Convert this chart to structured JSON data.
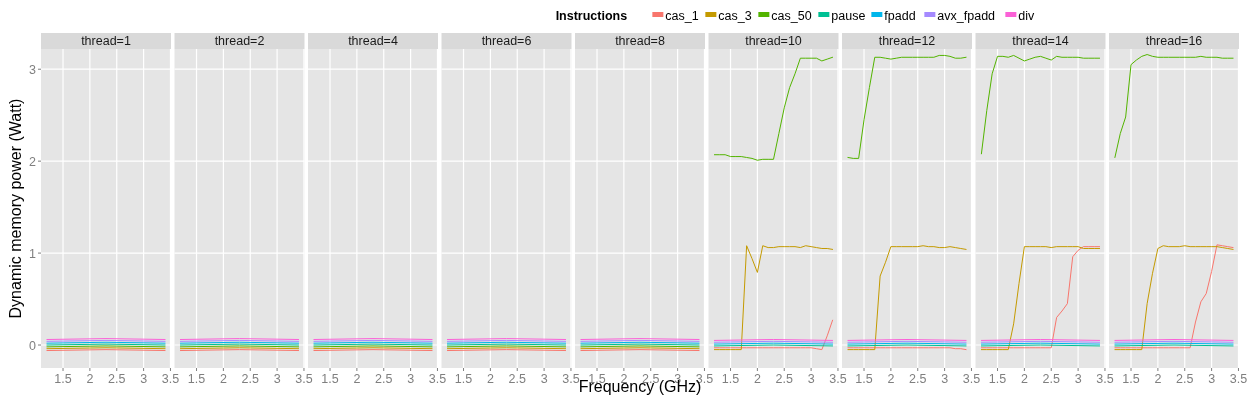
{
  "chart_data": [
    {
      "type": "line",
      "title": "thread=1",
      "ylabel": "Dynamic memory power (Watt)",
      "legend": "top",
      "legend_title": "Instructions",
      "xlim": [
        1.09,
        3.51
      ],
      "ylim": [
        -0.25,
        3.22
      ],
      "xticks": [
        1.5,
        2.0,
        2.5,
        3.0,
        3.5
      ],
      "yticks": [
        0,
        1,
        2,
        3
      ],
      "grid": true,
      "series": [
        {
          "name": "cas_1",
          "color": "#f8766d",
          "x": [
            1.2,
            2.3,
            3.4
          ],
          "values": [
            -0.06,
            -0.05,
            -0.06
          ]
        },
        {
          "name": "cas_3",
          "color": "#c49a00",
          "x": [
            1.2,
            2.3,
            3.4
          ],
          "values": [
            -0.04,
            -0.03,
            -0.04
          ]
        },
        {
          "name": "cas_50",
          "color": "#53b400",
          "x": [
            1.2,
            2.3,
            3.4
          ],
          "values": [
            -0.02,
            -0.01,
            -0.02
          ]
        },
        {
          "name": "pause",
          "color": "#00c094",
          "x": [
            1.2,
            2.3,
            3.4
          ],
          "values": [
            0,
            0.01,
            0
          ]
        },
        {
          "name": "fpadd",
          "color": "#00b6eb",
          "x": [
            1.2,
            2.3,
            3.4
          ],
          "values": [
            0.02,
            0.03,
            0.02
          ]
        },
        {
          "name": "avx_fpadd",
          "color": "#a58aff",
          "x": [
            1.2,
            2.3,
            3.4
          ],
          "values": [
            0.04,
            0.05,
            0.04
          ]
        },
        {
          "name": "div",
          "color": "#fb61d7",
          "x": [
            1.2,
            2.3,
            3.4
          ],
          "values": [
            0.06,
            0.07,
            0.06
          ]
        }
      ]
    },
    {
      "type": "line",
      "title": "thread=2",
      "xlim": [
        1.09,
        3.51
      ],
      "ylim": [
        -0.25,
        3.22
      ],
      "xticks": [
        1.5,
        2.0,
        2.5,
        3.0,
        3.5
      ],
      "yticks": [
        0,
        1,
        2,
        3
      ],
      "grid": true,
      "tick_labels": "x",
      "series": [
        {
          "color": "#f8766d",
          "x": [
            1.2,
            2.3,
            3.4
          ],
          "values": [
            -0.06,
            -0.05,
            -0.06
          ]
        },
        {
          "color": "#c49a00",
          "x": [
            1.2,
            2.3,
            3.4
          ],
          "values": [
            -0.04,
            -0.03,
            -0.04
          ]
        },
        {
          "color": "#53b400",
          "x": [
            1.2,
            2.3,
            3.4
          ],
          "values": [
            -0.02,
            -0.01,
            -0.02
          ]
        },
        {
          "color": "#00c094",
          "x": [
            1.2,
            2.3,
            3.4
          ],
          "values": [
            0,
            0.01,
            0
          ]
        },
        {
          "color": "#00b6eb",
          "x": [
            1.2,
            2.3,
            3.4
          ],
          "values": [
            0.02,
            0.03,
            0.02
          ]
        },
        {
          "color": "#a58aff",
          "x": [
            1.2,
            2.3,
            3.4
          ],
          "values": [
            0.04,
            0.05,
            0.04
          ]
        },
        {
          "color": "#fb61d7",
          "x": [
            1.2,
            2.3,
            3.4
          ],
          "values": [
            0.06,
            0.07,
            0.06
          ]
        }
      ]
    },
    {
      "type": "line",
      "title": "thread=4",
      "xlim": [
        1.09,
        3.51
      ],
      "ylim": [
        -0.25,
        3.22
      ],
      "xticks": [
        1.5,
        2.0,
        2.5,
        3.0,
        3.5
      ],
      "yticks": [
        0,
        1,
        2,
        3
      ],
      "grid": true,
      "tick_labels": "x",
      "series": [
        {
          "color": "#f8766d",
          "x": [
            1.2,
            2.3,
            3.4
          ],
          "values": [
            -0.06,
            -0.05,
            -0.06
          ]
        },
        {
          "color": "#c49a00",
          "x": [
            1.2,
            2.3,
            3.4
          ],
          "values": [
            -0.04,
            -0.03,
            -0.04
          ]
        },
        {
          "color": "#53b400",
          "x": [
            1.2,
            2.3,
            3.4
          ],
          "values": [
            -0.02,
            -0.01,
            -0.02
          ]
        },
        {
          "color": "#00c094",
          "x": [
            1.2,
            2.3,
            3.4
          ],
          "values": [
            0,
            0.01,
            0
          ]
        },
        {
          "color": "#00b6eb",
          "x": [
            1.2,
            2.3,
            3.4
          ],
          "values": [
            0.02,
            0.03,
            0.02
          ]
        },
        {
          "color": "#a58aff",
          "x": [
            1.2,
            2.3,
            3.4
          ],
          "values": [
            0.04,
            0.05,
            0.04
          ]
        },
        {
          "color": "#fb61d7",
          "x": [
            1.2,
            2.3,
            3.4
          ],
          "values": [
            0.06,
            0.07,
            0.06
          ]
        }
      ]
    },
    {
      "type": "line",
      "title": "thread=6",
      "xlim": [
        1.09,
        3.51
      ],
      "ylim": [
        -0.25,
        3.22
      ],
      "xticks": [
        1.5,
        2.0,
        2.5,
        3.0,
        3.5
      ],
      "yticks": [
        0,
        1,
        2,
        3
      ],
      "grid": true,
      "tick_labels": "x",
      "series": [
        {
          "color": "#f8766d",
          "x": [
            1.2,
            2.3,
            3.4
          ],
          "values": [
            -0.06,
            -0.05,
            -0.06
          ]
        },
        {
          "color": "#c49a00",
          "x": [
            1.2,
            2.3,
            3.4
          ],
          "values": [
            -0.04,
            -0.03,
            -0.04
          ]
        },
        {
          "color": "#53b400",
          "x": [
            1.2,
            2.3,
            3.4
          ],
          "values": [
            -0.02,
            -0.01,
            -0.02
          ]
        },
        {
          "color": "#00c094",
          "x": [
            1.2,
            2.3,
            3.4
          ],
          "values": [
            0,
            0.01,
            0
          ]
        },
        {
          "color": "#00b6eb",
          "x": [
            1.2,
            2.3,
            3.4
          ],
          "values": [
            0.02,
            0.03,
            0.02
          ]
        },
        {
          "color": "#a58aff",
          "x": [
            1.2,
            2.3,
            3.4
          ],
          "values": [
            0.04,
            0.05,
            0.04
          ]
        },
        {
          "color": "#fb61d7",
          "x": [
            1.2,
            2.3,
            3.4
          ],
          "values": [
            0.06,
            0.07,
            0.06
          ]
        }
      ]
    },
    {
      "type": "line",
      "title": "thread=8",
      "xlabel": "Frequency (GHz)",
      "xlim": [
        1.09,
        3.51
      ],
      "ylim": [
        -0.25,
        3.22
      ],
      "xticks": [
        1.5,
        2.0,
        2.5,
        3.0,
        3.5
      ],
      "yticks": [
        0,
        1,
        2,
        3
      ],
      "grid": true,
      "tick_labels": "x",
      "series": [
        {
          "color": "#f8766d",
          "x": [
            1.2,
            2.3,
            3.4
          ],
          "values": [
            -0.06,
            -0.05,
            -0.06
          ]
        },
        {
          "color": "#c49a00",
          "x": [
            1.2,
            2.3,
            3.4
          ],
          "values": [
            -0.04,
            -0.03,
            -0.04
          ]
        },
        {
          "color": "#53b400",
          "x": [
            1.2,
            2.3,
            3.4
          ],
          "values": [
            -0.02,
            -0.01,
            -0.02
          ]
        },
        {
          "color": "#00c094",
          "x": [
            1.2,
            2.3,
            3.4
          ],
          "values": [
            0,
            0.01,
            0
          ]
        },
        {
          "color": "#00b6eb",
          "x": [
            1.2,
            2.3,
            3.4
          ],
          "values": [
            0.02,
            0.03,
            0.02
          ]
        },
        {
          "color": "#a58aff",
          "x": [
            1.2,
            2.3,
            3.4
          ],
          "values": [
            0.04,
            0.05,
            0.04
          ]
        },
        {
          "color": "#fb61d7",
          "x": [
            1.2,
            2.3,
            3.4
          ],
          "values": [
            0.06,
            0.07,
            0.06
          ]
        }
      ]
    },
    {
      "type": "line",
      "title": "thread=10",
      "xlim": [
        1.09,
        3.51
      ],
      "ylim": [
        -0.25,
        3.22
      ],
      "xticks": [
        1.5,
        2.0,
        2.5,
        3.0,
        3.5
      ],
      "yticks": [
        0,
        1,
        2,
        3
      ],
      "grid": true,
      "tick_labels": "x",
      "x": [
        1.2,
        1.3,
        1.4,
        1.5,
        1.6,
        1.7,
        1.8,
        1.9,
        2.0,
        2.1,
        2.2,
        2.3,
        2.4,
        2.5,
        2.6,
        2.7,
        2.8,
        2.9,
        3.0,
        3.1,
        3.2,
        3.3,
        3.4
      ],
      "series": [
        {
          "color": "#f8766d",
          "values": [
            -0.03,
            -0.03,
            -0.03,
            -0.03,
            -0.03,
            -0.03,
            -0.03,
            -0.03,
            -0.03,
            -0.03,
            -0.03,
            -0.03,
            -0.03,
            -0.03,
            -0.03,
            -0.03,
            -0.03,
            -0.03,
            -0.03,
            -0.04,
            -0.05,
            0.1,
            0.27
          ]
        },
        {
          "color": "#c49a00",
          "values": [
            -0.05,
            -0.05,
            -0.05,
            -0.05,
            -0.05,
            -0.05,
            1.08,
            0.94,
            0.79,
            1.08,
            1.06,
            1.06,
            1.07,
            1.07,
            1.07,
            1.07,
            1.06,
            1.08,
            1.07,
            1.06,
            1.05,
            1.05,
            1.04
          ]
        },
        {
          "color": "#53b400",
          "values": [
            2.07,
            2.07,
            2.07,
            2.05,
            2.05,
            2.05,
            2.04,
            2.03,
            2.01,
            2.02,
            2.02,
            2.02,
            2.3,
            2.58,
            2.8,
            2.95,
            3.12,
            3.12,
            3.12,
            3.12,
            3.09,
            3.11,
            3.13
          ]
        },
        {
          "color": "#00c094",
          "x": [
            1.2,
            2.3,
            3.4
          ],
          "values": [
            -0.01,
            0,
            -0.01
          ]
        },
        {
          "color": "#00b6eb",
          "x": [
            1.2,
            2.3,
            3.4
          ],
          "values": [
            0.01,
            0.02,
            0.01
          ]
        },
        {
          "color": "#a58aff",
          "x": [
            1.2,
            2.3,
            3.4
          ],
          "values": [
            0.03,
            0.04,
            0.03
          ]
        },
        {
          "color": "#fb61d7",
          "x": [
            1.2,
            2.3,
            3.4
          ],
          "values": [
            0.05,
            0.06,
            0.05
          ]
        }
      ]
    },
    {
      "type": "line",
      "title": "thread=12",
      "xlim": [
        1.09,
        3.51
      ],
      "ylim": [
        -0.25,
        3.22
      ],
      "xticks": [
        1.5,
        2.0,
        2.5,
        3.0,
        3.5
      ],
      "yticks": [
        0,
        1,
        2,
        3
      ],
      "grid": true,
      "tick_labels": "x",
      "x": [
        1.2,
        1.3,
        1.4,
        1.5,
        1.6,
        1.7,
        1.8,
        1.9,
        2.0,
        2.1,
        2.2,
        2.3,
        2.4,
        2.5,
        2.6,
        2.7,
        2.8,
        2.9,
        3.0,
        3.1,
        3.2,
        3.3,
        3.4
      ],
      "series": [
        {
          "color": "#f8766d",
          "values": [
            -0.03,
            -0.03,
            -0.03,
            -0.03,
            -0.03,
            -0.03,
            -0.03,
            -0.03,
            -0.03,
            -0.03,
            -0.03,
            -0.03,
            -0.03,
            -0.03,
            -0.03,
            -0.03,
            -0.03,
            -0.03,
            -0.03,
            -0.03,
            -0.04,
            -0.04,
            -0.05
          ]
        },
        {
          "color": "#c49a00",
          "values": [
            -0.05,
            -0.05,
            -0.05,
            -0.05,
            -0.05,
            -0.05,
            0.75,
            0.9,
            1.07,
            1.07,
            1.07,
            1.07,
            1.07,
            1.07,
            1.08,
            1.07,
            1.07,
            1.06,
            1.06,
            1.07,
            1.06,
            1.05,
            1.04
          ]
        },
        {
          "color": "#53b400",
          "values": [
            2.04,
            2.03,
            2.03,
            2.45,
            2.8,
            3.13,
            3.13,
            3.12,
            3.11,
            3.12,
            3.13,
            3.13,
            3.13,
            3.13,
            3.13,
            3.13,
            3.13,
            3.15,
            3.15,
            3.14,
            3.12,
            3.12,
            3.13
          ]
        },
        {
          "color": "#00c094",
          "x": [
            1.2,
            2.3,
            3.4
          ],
          "values": [
            -0.01,
            0,
            -0.01
          ]
        },
        {
          "color": "#00b6eb",
          "x": [
            1.2,
            2.3,
            3.4
          ],
          "values": [
            0.01,
            0.02,
            0.01
          ]
        },
        {
          "color": "#a58aff",
          "x": [
            1.2,
            2.3,
            3.4
          ],
          "values": [
            0.03,
            0.04,
            0.03
          ]
        },
        {
          "color": "#fb61d7",
          "x": [
            1.2,
            2.3,
            3.4
          ],
          "values": [
            0.05,
            0.06,
            0.05
          ]
        }
      ]
    },
    {
      "type": "line",
      "title": "thread=14",
      "xlim": [
        1.09,
        3.51
      ],
      "ylim": [
        -0.25,
        3.22
      ],
      "xticks": [
        1.5,
        2.0,
        2.5,
        3.0,
        3.5
      ],
      "yticks": [
        0,
        1,
        2,
        3
      ],
      "grid": true,
      "tick_labels": "x",
      "x": [
        1.2,
        1.3,
        1.4,
        1.5,
        1.6,
        1.7,
        1.8,
        1.9,
        2.0,
        2.1,
        2.2,
        2.3,
        2.4,
        2.5,
        2.6,
        2.7,
        2.8,
        2.9,
        3.0,
        3.1,
        3.2,
        3.3,
        3.4
      ],
      "series": [
        {
          "color": "#f8766d",
          "values": [
            -0.03,
            -0.03,
            -0.03,
            -0.03,
            -0.03,
            -0.03,
            -0.03,
            -0.03,
            -0.03,
            -0.03,
            -0.03,
            -0.03,
            -0.03,
            -0.03,
            0.3,
            0.37,
            0.45,
            0.96,
            1.03,
            1.07,
            1.07,
            1.07,
            1.07
          ]
        },
        {
          "color": "#c49a00",
          "values": [
            -0.05,
            -0.05,
            -0.05,
            -0.05,
            -0.05,
            -0.05,
            0.23,
            0.67,
            1.07,
            1.07,
            1.07,
            1.07,
            1.07,
            1.06,
            1.07,
            1.07,
            1.07,
            1.07,
            1.07,
            1.05,
            1.05,
            1.05,
            1.05
          ]
        },
        {
          "color": "#53b400",
          "values": [
            2.08,
            2.55,
            2.95,
            3.14,
            3.14,
            3.13,
            3.15,
            3.12,
            3.09,
            3.11,
            3.13,
            3.14,
            3.12,
            3.1,
            3.14,
            3.13,
            3.13,
            3.13,
            3.13,
            3.12,
            3.12,
            3.12,
            3.12
          ]
        },
        {
          "color": "#00c094",
          "x": [
            1.2,
            2.3,
            3.4
          ],
          "values": [
            -0.01,
            0,
            -0.01
          ]
        },
        {
          "color": "#00b6eb",
          "x": [
            1.2,
            2.3,
            3.4
          ],
          "values": [
            0.01,
            0.02,
            0.01
          ]
        },
        {
          "color": "#a58aff",
          "x": [
            1.2,
            2.3,
            3.4
          ],
          "values": [
            0.03,
            0.04,
            0.03
          ]
        },
        {
          "color": "#fb61d7",
          "x": [
            1.2,
            2.3,
            3.4
          ],
          "values": [
            0.05,
            0.06,
            0.05
          ]
        }
      ]
    },
    {
      "type": "line",
      "title": "thread=16",
      "xlim": [
        1.09,
        3.51
      ],
      "ylim": [
        -0.25,
        3.22
      ],
      "xticks": [
        1.5,
        2.0,
        2.5,
        3.0,
        3.5
      ],
      "yticks": [
        0,
        1,
        2,
        3
      ],
      "grid": true,
      "tick_labels": "x",
      "x": [
        1.2,
        1.3,
        1.4,
        1.5,
        1.6,
        1.7,
        1.8,
        1.9,
        2.0,
        2.1,
        2.2,
        2.3,
        2.4,
        2.5,
        2.6,
        2.7,
        2.8,
        2.9,
        3.0,
        3.1,
        3.2,
        3.3,
        3.4
      ],
      "series": [
        {
          "color": "#f8766d",
          "values": [
            -0.03,
            -0.03,
            -0.03,
            -0.03,
            -0.03,
            -0.03,
            -0.03,
            -0.03,
            -0.03,
            -0.03,
            -0.03,
            -0.03,
            -0.03,
            -0.03,
            -0.03,
            0.25,
            0.47,
            0.56,
            0.8,
            1.09,
            1.08,
            1.07,
            1.06
          ]
        },
        {
          "color": "#c49a00",
          "values": [
            -0.05,
            -0.05,
            -0.05,
            -0.05,
            -0.05,
            -0.05,
            0.45,
            0.78,
            1.05,
            1.08,
            1.07,
            1.07,
            1.07,
            1.08,
            1.07,
            1.07,
            1.07,
            1.07,
            1.07,
            1.07,
            1.06,
            1.05,
            1.04
          ]
        },
        {
          "color": "#53b400",
          "values": [
            2.04,
            2.3,
            2.48,
            3.05,
            3.1,
            3.14,
            3.16,
            3.14,
            3.13,
            3.13,
            3.13,
            3.13,
            3.13,
            3.13,
            3.13,
            3.13,
            3.14,
            3.13,
            3.13,
            3.13,
            3.12,
            3.12,
            3.12
          ]
        },
        {
          "color": "#00c094",
          "x": [
            1.2,
            2.3,
            3.4
          ],
          "values": [
            -0.01,
            0,
            -0.01
          ]
        },
        {
          "color": "#00b6eb",
          "x": [
            1.2,
            2.3,
            3.4
          ],
          "values": [
            0.01,
            0.02,
            0.01
          ]
        },
        {
          "color": "#a58aff",
          "x": [
            1.2,
            2.3,
            3.4
          ],
          "values": [
            0.03,
            0.04,
            0.03
          ]
        },
        {
          "color": "#fb61d7",
          "x": [
            1.2,
            2.3,
            3.4
          ],
          "values": [
            0.05,
            0.06,
            0.05
          ]
        }
      ]
    }
  ]
}
